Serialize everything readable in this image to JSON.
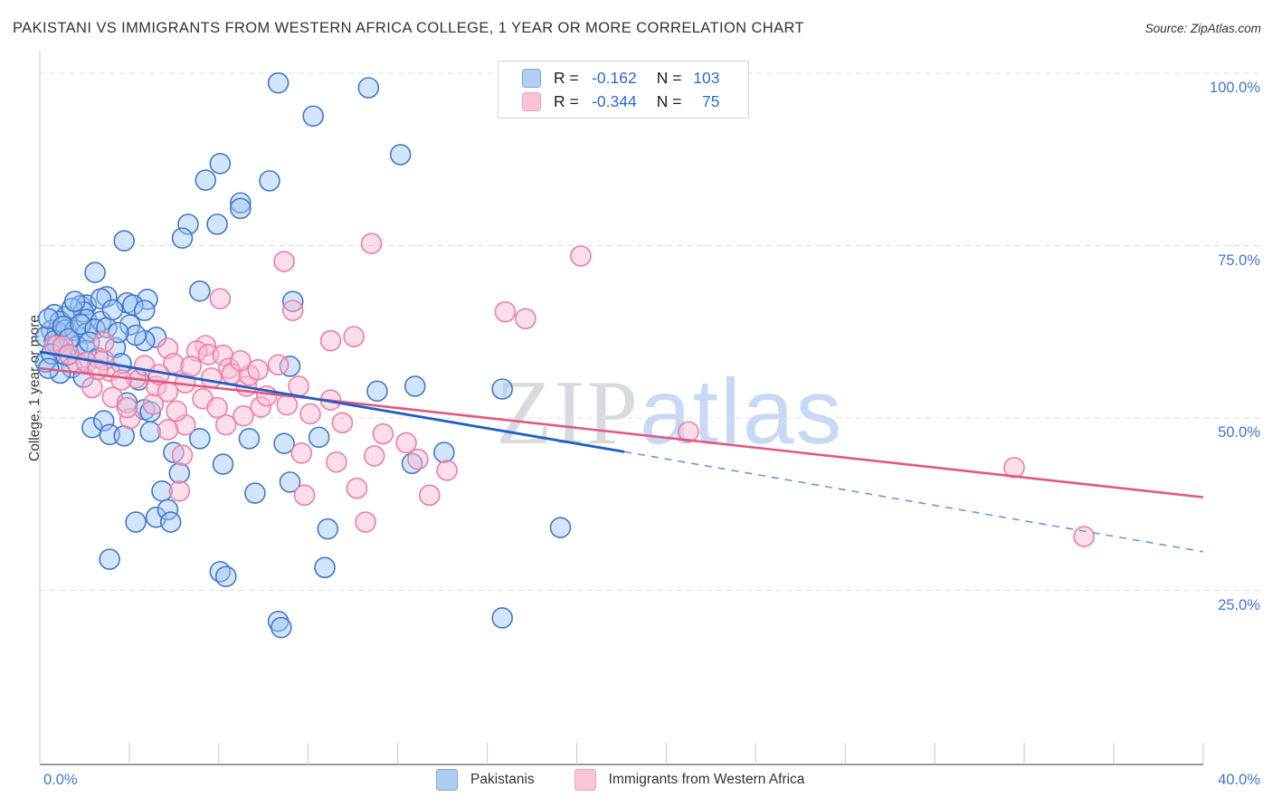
{
  "title": "PAKISTANI VS IMMIGRANTS FROM WESTERN AFRICA COLLEGE, 1 YEAR OR MORE CORRELATION CHART",
  "source": "Source: ZipAtlas.com",
  "y_axis_label": "College, 1 year or more",
  "watermark": {
    "zip": "ZIP",
    "atlas": "atlas"
  },
  "legend_box": {
    "rows": [
      {
        "series": "Pakistanis",
        "r_label": "R = ",
        "r_value": "-0.162",
        "n_label": "N = ",
        "n_value": "103"
      },
      {
        "series": "Immigrants from Western Africa",
        "r_label": "R = ",
        "r_value": "-0.344",
        "n_label": "N = ",
        "n_value": "75"
      }
    ]
  },
  "bottom_legend": {
    "items": [
      {
        "label": "Pakistanis",
        "swatch": "blue"
      },
      {
        "label": "Immigrants from Western Africa",
        "swatch": "pink"
      }
    ]
  },
  "axis": {
    "x_min_label": "0.0%",
    "x_max_label": "40.0%",
    "y_tick_labels": [
      "100.0%",
      "75.0%",
      "50.0%",
      "25.0%"
    ],
    "y_gridlines": [
      100,
      75,
      50,
      25
    ],
    "x_range": [
      0,
      40
    ],
    "y_range": [
      0,
      100
    ]
  },
  "colors": {
    "blue_stroke": "#4277cb",
    "blue_fill": "rgba(158,197,243,0.45)",
    "pink_stroke": "#ee7da6",
    "pink_fill": "rgba(248,190,211,0.5)",
    "blue_trend": "#1d5fc4",
    "blue_trend_dashed": "#6699dd",
    "pink_trend": "#e4577f",
    "gridline": "#dcdcdc",
    "axis_line": "#9b9b9b",
    "spine": "#c8c8c8",
    "tick": "#c9c9c9",
    "label_blue": "#3f76d6"
  },
  "chart_data": {
    "type": "scatter",
    "title": "PAKISTANI VS IMMIGRANTS FROM WESTERN AFRICA COLLEGE, 1 YEAR OR MORE CORRELATION CHART",
    "xlabel_implied": "Pakistani / Western African immigrant population share (%)",
    "ylabel": "College, 1 year or more",
    "x_range": [
      0,
      40
    ],
    "y_range": [
      0,
      100
    ],
    "grid": "horizontal-dashed",
    "legend_position": "top-center and bottom-center",
    "series": [
      {
        "name": "Pakistanis",
        "R": -0.162,
        "N": 103,
        "points": [
          [
            8.2,
            98.6
          ],
          [
            11.3,
            97.9
          ],
          [
            9.4,
            93.8
          ],
          [
            12.4,
            88.2
          ],
          [
            6.2,
            86.9
          ],
          [
            5.7,
            84.5
          ],
          [
            7.9,
            84.4
          ],
          [
            6.9,
            81.2
          ],
          [
            6.9,
            80.4
          ],
          [
            5.1,
            78.1
          ],
          [
            6.1,
            78.1
          ],
          [
            4.9,
            76.1
          ],
          [
            2.9,
            75.7
          ],
          [
            1.9,
            71.1
          ],
          [
            5.5,
            68.4
          ],
          [
            2.3,
            67.6
          ],
          [
            3.0,
            66.7
          ],
          [
            3.7,
            67.2
          ],
          [
            8.7,
            66.9
          ],
          [
            1.4,
            66.3
          ],
          [
            1.6,
            66.4
          ],
          [
            0.5,
            65.0
          ],
          [
            0.9,
            64.7
          ],
          [
            0.7,
            64.0
          ],
          [
            1.5,
            65.4
          ],
          [
            0.4,
            62.7
          ],
          [
            0.6,
            62.5
          ],
          [
            0.9,
            62.8
          ],
          [
            0.2,
            61.8
          ],
          [
            0.5,
            61.2
          ],
          [
            1.2,
            62.7
          ],
          [
            1.6,
            64.3
          ],
          [
            2.1,
            64.0
          ],
          [
            1.6,
            62.3
          ],
          [
            1.3,
            60.4
          ],
          [
            1.6,
            59.8
          ],
          [
            0.2,
            58.1
          ],
          [
            2.1,
            67.3
          ],
          [
            3.2,
            66.4
          ],
          [
            3.6,
            65.6
          ],
          [
            4.0,
            61.7
          ],
          [
            3.6,
            61.2
          ],
          [
            3.4,
            55.5
          ],
          [
            1.8,
            48.6
          ],
          [
            2.2,
            49.6
          ],
          [
            2.4,
            47.6
          ],
          [
            3.6,
            51.2
          ],
          [
            3.8,
            50.9
          ],
          [
            3.8,
            48.0
          ],
          [
            3.0,
            52.2
          ],
          [
            5.5,
            47.0
          ],
          [
            8.6,
            57.5
          ],
          [
            11.6,
            53.9
          ],
          [
            2.9,
            47.4
          ],
          [
            4.6,
            45.0
          ],
          [
            4.8,
            42.0
          ],
          [
            6.3,
            43.3
          ],
          [
            7.2,
            47.0
          ],
          [
            8.4,
            46.3
          ],
          [
            9.6,
            47.2
          ],
          [
            12.9,
            54.6
          ],
          [
            13.9,
            45.0
          ],
          [
            12.8,
            43.4
          ],
          [
            8.6,
            40.7
          ],
          [
            4.2,
            39.4
          ],
          [
            7.4,
            39.1
          ],
          [
            3.3,
            34.9
          ],
          [
            4.0,
            35.6
          ],
          [
            4.4,
            36.7
          ],
          [
            4.5,
            34.9
          ],
          [
            9.9,
            33.9
          ],
          [
            2.4,
            29.5
          ],
          [
            6.2,
            27.7
          ],
          [
            6.4,
            27.0
          ],
          [
            9.8,
            28.3
          ],
          [
            8.2,
            20.5
          ],
          [
            8.3,
            19.6
          ],
          [
            15.9,
            21.0
          ],
          [
            17.9,
            34.1
          ],
          [
            15.9,
            54.2
          ],
          [
            0.3,
            64.4
          ],
          [
            0.8,
            63.3
          ],
          [
            1.1,
            65.9
          ],
          [
            0.6,
            60.6
          ],
          [
            1.0,
            61.5
          ],
          [
            1.4,
            63.6
          ],
          [
            1.9,
            62.9
          ],
          [
            2.3,
            63.1
          ],
          [
            0.4,
            59.3
          ],
          [
            0.9,
            59.0
          ],
          [
            1.7,
            61.0
          ],
          [
            2.6,
            60.2
          ],
          [
            2.0,
            58.7
          ],
          [
            2.8,
            57.9
          ],
          [
            1.1,
            57.3
          ],
          [
            0.7,
            56.5
          ],
          [
            1.5,
            55.9
          ],
          [
            2.5,
            65.7
          ],
          [
            3.1,
            63.5
          ],
          [
            3.3,
            62.0
          ],
          [
            2.7,
            62.4
          ],
          [
            1.2,
            66.9
          ],
          [
            0.3,
            57.2
          ]
        ]
      },
      {
        "name": "Immigrants from Western Africa",
        "R": -0.344,
        "N": 75,
        "points": [
          [
            11.4,
            75.3
          ],
          [
            8.4,
            72.7
          ],
          [
            6.2,
            67.3
          ],
          [
            8.7,
            65.6
          ],
          [
            10.0,
            61.2
          ],
          [
            10.8,
            61.8
          ],
          [
            5.7,
            60.5
          ],
          [
            18.6,
            73.5
          ],
          [
            16.0,
            65.4
          ],
          [
            16.7,
            64.4
          ],
          [
            0.5,
            60.5
          ],
          [
            0.8,
            60.4
          ],
          [
            1.3,
            57.9
          ],
          [
            2.4,
            56.8
          ],
          [
            2.2,
            58.4
          ],
          [
            4.4,
            60.1
          ],
          [
            5.4,
            59.7
          ],
          [
            5.8,
            59.2
          ],
          [
            6.3,
            59.1
          ],
          [
            4.6,
            57.9
          ],
          [
            5.0,
            55.1
          ],
          [
            3.3,
            55.8
          ],
          [
            4.0,
            54.6
          ],
          [
            4.4,
            53.8
          ],
          [
            6.5,
            57.2
          ],
          [
            6.6,
            56.4
          ],
          [
            7.1,
            54.6
          ],
          [
            7.2,
            56.2
          ],
          [
            6.4,
            49.0
          ],
          [
            5.0,
            49.0
          ],
          [
            3.1,
            49.9
          ],
          [
            2.2,
            61.0
          ],
          [
            8.2,
            57.7
          ],
          [
            8.9,
            54.6
          ],
          [
            7.6,
            51.6
          ],
          [
            10.0,
            52.6
          ],
          [
            4.9,
            44.6
          ],
          [
            4.4,
            48.3
          ],
          [
            14.0,
            42.4
          ],
          [
            4.8,
            39.4
          ],
          [
            9.1,
            38.8
          ],
          [
            10.9,
            39.8
          ],
          [
            11.2,
            34.9
          ],
          [
            13.4,
            38.8
          ],
          [
            22.3,
            48.0
          ],
          [
            33.5,
            42.8
          ],
          [
            35.9,
            32.8
          ],
          [
            1.0,
            59.2
          ],
          [
            1.6,
            58.1
          ],
          [
            2.0,
            57.0
          ],
          [
            2.8,
            55.5
          ],
          [
            3.6,
            57.6
          ],
          [
            4.1,
            56.3
          ],
          [
            5.2,
            57.5
          ],
          [
            5.9,
            55.8
          ],
          [
            6.9,
            58.3
          ],
          [
            7.5,
            57.0
          ],
          [
            3.9,
            52.0
          ],
          [
            4.7,
            51.0
          ],
          [
            5.6,
            52.8
          ],
          [
            6.1,
            51.5
          ],
          [
            7.0,
            50.3
          ],
          [
            7.8,
            53.2
          ],
          [
            8.5,
            51.9
          ],
          [
            9.3,
            50.6
          ],
          [
            2.5,
            53.0
          ],
          [
            1.8,
            54.4
          ],
          [
            3.0,
            51.5
          ],
          [
            10.4,
            49.3
          ],
          [
            11.8,
            47.7
          ],
          [
            12.6,
            46.4
          ],
          [
            9.0,
            44.9
          ],
          [
            10.2,
            43.6
          ],
          [
            11.5,
            44.5
          ],
          [
            13.0,
            44.0
          ]
        ]
      }
    ],
    "trend_lines": [
      {
        "series": "Pakistanis",
        "solid": [
          [
            0,
            59.6
          ],
          [
            20.1,
            45.1
          ]
        ],
        "dashed": [
          [
            20.1,
            45.1
          ],
          [
            40,
            30.6
          ]
        ]
      },
      {
        "series": "Immigrants from Western Africa",
        "solid": [
          [
            0,
            57.2
          ],
          [
            40,
            38.5
          ]
        ],
        "dashed": null
      }
    ]
  }
}
